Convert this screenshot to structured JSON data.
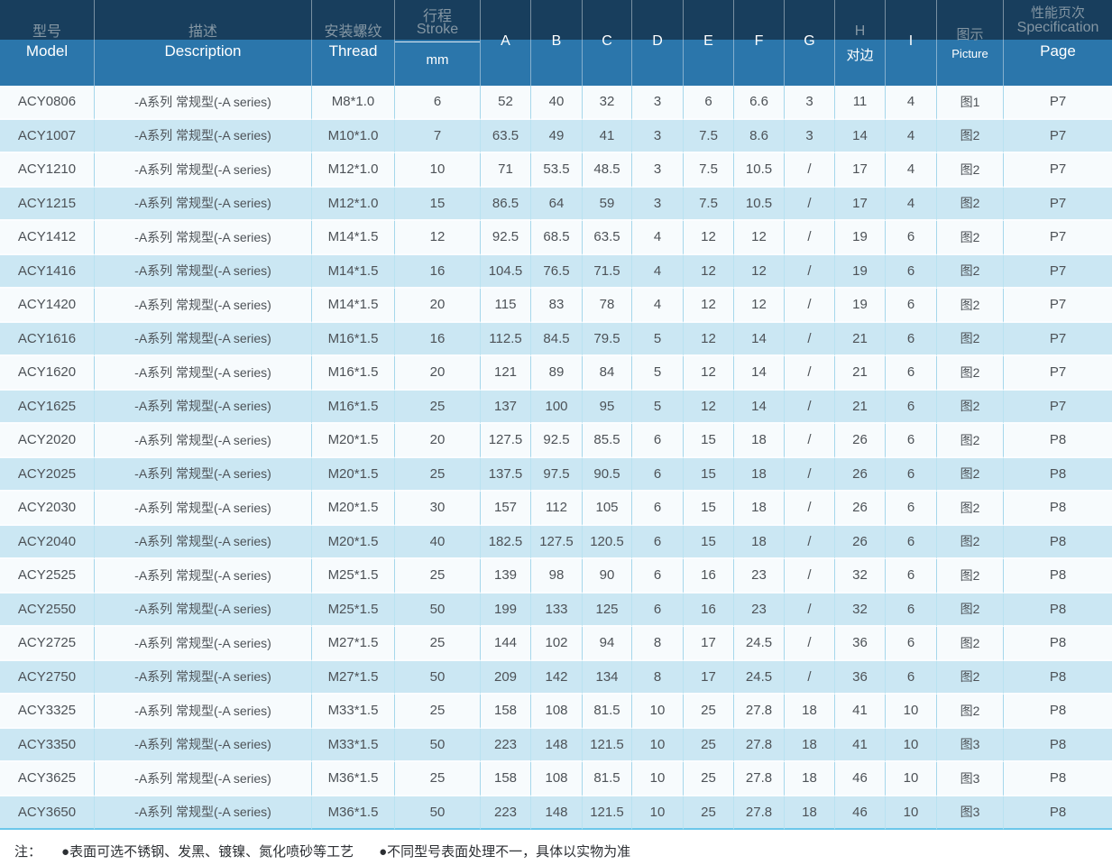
{
  "header": {
    "columns": [
      {
        "key": "model",
        "zh": "型号",
        "en": "Model"
      },
      {
        "key": "description",
        "zh": "描述",
        "en": "Description"
      },
      {
        "key": "thread",
        "zh": "安装螺纹",
        "en": "Thread"
      },
      {
        "key": "stroke",
        "zh": "行程",
        "en": "Stroke",
        "sub": "mm"
      },
      {
        "key": "dim-a",
        "letter": "A"
      },
      {
        "key": "dim-b",
        "letter": "B"
      },
      {
        "key": "dim-c",
        "letter": "C"
      },
      {
        "key": "dim-d",
        "letter": "D"
      },
      {
        "key": "dim-e",
        "letter": "E"
      },
      {
        "key": "dim-f",
        "letter": "F"
      },
      {
        "key": "dim-g",
        "letter": "G"
      },
      {
        "key": "dim-h",
        "letter": "H",
        "zh": "对边"
      },
      {
        "key": "dim-i",
        "letter": "I"
      },
      {
        "key": "picture",
        "zh": "图示",
        "en": "Picture"
      },
      {
        "key": "page",
        "zh": "性能页次",
        "en": "Specification",
        "en2": "Page"
      }
    ]
  },
  "table": {
    "rows": [
      [
        "ACY0806",
        "-A系列 常规型(-A series)",
        "M8*1.0",
        "6",
        "52",
        "40",
        "32",
        "3",
        "6",
        "6.6",
        "3",
        "11",
        "4",
        "图1",
        "P7"
      ],
      [
        "ACY1007",
        "-A系列 常规型(-A series)",
        "M10*1.0",
        "7",
        "63.5",
        "49",
        "41",
        "3",
        "7.5",
        "8.6",
        "3",
        "14",
        "4",
        "图2",
        "P7"
      ],
      [
        "ACY1210",
        "-A系列 常规型(-A series)",
        "M12*1.0",
        "10",
        "71",
        "53.5",
        "48.5",
        "3",
        "7.5",
        "10.5",
        "/",
        "17",
        "4",
        "图2",
        "P7"
      ],
      [
        "ACY1215",
        "-A系列 常规型(-A series)",
        "M12*1.0",
        "15",
        "86.5",
        "64",
        "59",
        "3",
        "7.5",
        "10.5",
        "/",
        "17",
        "4",
        "图2",
        "P7"
      ],
      [
        "ACY1412",
        "-A系列 常规型(-A series)",
        "M14*1.5",
        "12",
        "92.5",
        "68.5",
        "63.5",
        "4",
        "12",
        "12",
        "/",
        "19",
        "6",
        "图2",
        "P7"
      ],
      [
        "ACY1416",
        "-A系列 常规型(-A series)",
        "M14*1.5",
        "16",
        "104.5",
        "76.5",
        "71.5",
        "4",
        "12",
        "12",
        "/",
        "19",
        "6",
        "图2",
        "P7"
      ],
      [
        "ACY1420",
        "-A系列 常规型(-A series)",
        "M14*1.5",
        "20",
        "115",
        "83",
        "78",
        "4",
        "12",
        "12",
        "/",
        "19",
        "6",
        "图2",
        "P7"
      ],
      [
        "ACY1616",
        "-A系列 常规型(-A series)",
        "M16*1.5",
        "16",
        "112.5",
        "84.5",
        "79.5",
        "5",
        "12",
        "14",
        "/",
        "21",
        "6",
        "图2",
        "P7"
      ],
      [
        "ACY1620",
        "-A系列 常规型(-A series)",
        "M16*1.5",
        "20",
        "121",
        "89",
        "84",
        "5",
        "12",
        "14",
        "/",
        "21",
        "6",
        "图2",
        "P7"
      ],
      [
        "ACY1625",
        "-A系列 常规型(-A series)",
        "M16*1.5",
        "25",
        "137",
        "100",
        "95",
        "5",
        "12",
        "14",
        "/",
        "21",
        "6",
        "图2",
        "P7"
      ],
      [
        "ACY2020",
        "-A系列 常规型(-A series)",
        "M20*1.5",
        "20",
        "127.5",
        "92.5",
        "85.5",
        "6",
        "15",
        "18",
        "/",
        "26",
        "6",
        "图2",
        "P8"
      ],
      [
        "ACY2025",
        "-A系列 常规型(-A series)",
        "M20*1.5",
        "25",
        "137.5",
        "97.5",
        "90.5",
        "6",
        "15",
        "18",
        "/",
        "26",
        "6",
        "图2",
        "P8"
      ],
      [
        "ACY2030",
        "-A系列 常规型(-A series)",
        "M20*1.5",
        "30",
        "157",
        "112",
        "105",
        "6",
        "15",
        "18",
        "/",
        "26",
        "6",
        "图2",
        "P8"
      ],
      [
        "ACY2040",
        "-A系列 常规型(-A series)",
        "M20*1.5",
        "40",
        "182.5",
        "127.5",
        "120.5",
        "6",
        "15",
        "18",
        "/",
        "26",
        "6",
        "图2",
        "P8"
      ],
      [
        "ACY2525",
        "-A系列 常规型(-A series)",
        "M25*1.5",
        "25",
        "139",
        "98",
        "90",
        "6",
        "16",
        "23",
        "/",
        "32",
        "6",
        "图2",
        "P8"
      ],
      [
        "ACY2550",
        "-A系列 常规型(-A series)",
        "M25*1.5",
        "50",
        "199",
        "133",
        "125",
        "6",
        "16",
        "23",
        "/",
        "32",
        "6",
        "图2",
        "P8"
      ],
      [
        "ACY2725",
        "-A系列 常规型(-A series)",
        "M27*1.5",
        "25",
        "144",
        "102",
        "94",
        "8",
        "17",
        "24.5",
        "/",
        "36",
        "6",
        "图2",
        "P8"
      ],
      [
        "ACY2750",
        "-A系列 常规型(-A series)",
        "M27*1.5",
        "50",
        "209",
        "142",
        "134",
        "8",
        "17",
        "24.5",
        "/",
        "36",
        "6",
        "图2",
        "P8"
      ],
      [
        "ACY3325",
        "-A系列 常规型(-A series)",
        "M33*1.5",
        "25",
        "158",
        "108",
        "81.5",
        "10",
        "25",
        "27.8",
        "18",
        "41",
        "10",
        "图2",
        "P8"
      ],
      [
        "ACY3350",
        "-A系列 常规型(-A series)",
        "M33*1.5",
        "50",
        "223",
        "148",
        "121.5",
        "10",
        "25",
        "27.8",
        "18",
        "41",
        "10",
        "图3",
        "P8"
      ],
      [
        "ACY3625",
        "-A系列 常规型(-A series)",
        "M36*1.5",
        "25",
        "158",
        "108",
        "81.5",
        "10",
        "25",
        "27.8",
        "18",
        "46",
        "10",
        "图3",
        "P8"
      ],
      [
        "ACY3650",
        "-A系列 常规型(-A series)",
        "M36*1.5",
        "50",
        "223",
        "148",
        "121.5",
        "10",
        "25",
        "27.8",
        "18",
        "46",
        "10",
        "图3",
        "P8"
      ]
    ]
  },
  "note": {
    "label": "注：",
    "items": [
      "●表面可选不锈钢、发黑、镀镍、氮化喷砂等工艺",
      "●不同型号表面处理不一，具体以实物为准"
    ]
  },
  "colors": {
    "header_dark": "#183e5d",
    "header_blue": "#2b76ab",
    "header_muted_text": "#8496a3",
    "row_light": "#f7fbfd",
    "row_blue": "#cbe7f3",
    "body_text": "#4d5257",
    "cell_border": "#a6d7eb",
    "table_bottom_line": "#6cc7ea"
  }
}
